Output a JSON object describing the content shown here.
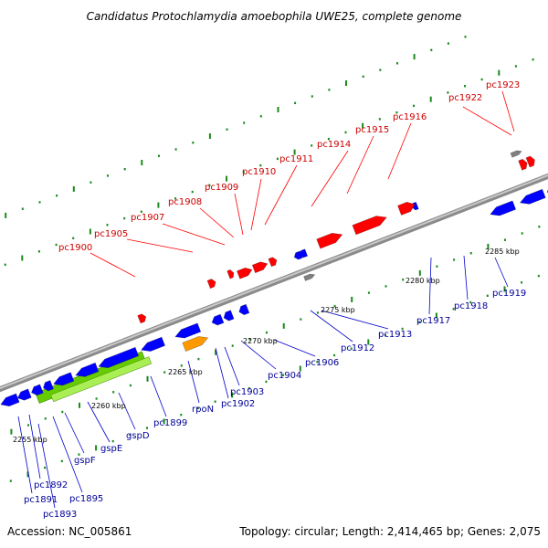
{
  "title": "Candidatus Protochlamydia amoebophila UWE25, complete genome",
  "footer": {
    "accession": "Accession: NC_005861",
    "summary": "Topology: circular; Length: 2,414,465 bp; Genes: 2,075"
  },
  "colors": {
    "forward_gene": "#ff0000",
    "reverse_gene": "#0000ff",
    "rna_gene": "#808080",
    "orange_gene": "#ff9900",
    "green_region": "#66cc00",
    "backbone": "#999999",
    "dots": "#1a8a1a",
    "forward_label": "#cc0000",
    "reverse_label": "#000099"
  },
  "ticks": [
    "2255 kbp",
    "2260 kbp",
    "2265 kbp",
    "2270 kbp",
    "2275 kbp",
    "2280 kbp",
    "2285 kbp"
  ],
  "forward_genes": [
    "pc1900",
    "pc1905",
    "pc1907",
    "pc1908",
    "pc1909",
    "pc1910",
    "pc1911",
    "pc1914",
    "pc1915",
    "pc1916",
    "pc1922",
    "pc1923"
  ],
  "reverse_genes": [
    "pc1891",
    "pc1892",
    "pc1893",
    "pc1895",
    "gspF",
    "gspE",
    "gspD",
    "pc1899",
    "rpoN",
    "pc1902",
    "pc1903",
    "pc1904",
    "pc1906",
    "pc1912",
    "pc1913",
    "pc1917",
    "pc1918",
    "pc1919"
  ]
}
